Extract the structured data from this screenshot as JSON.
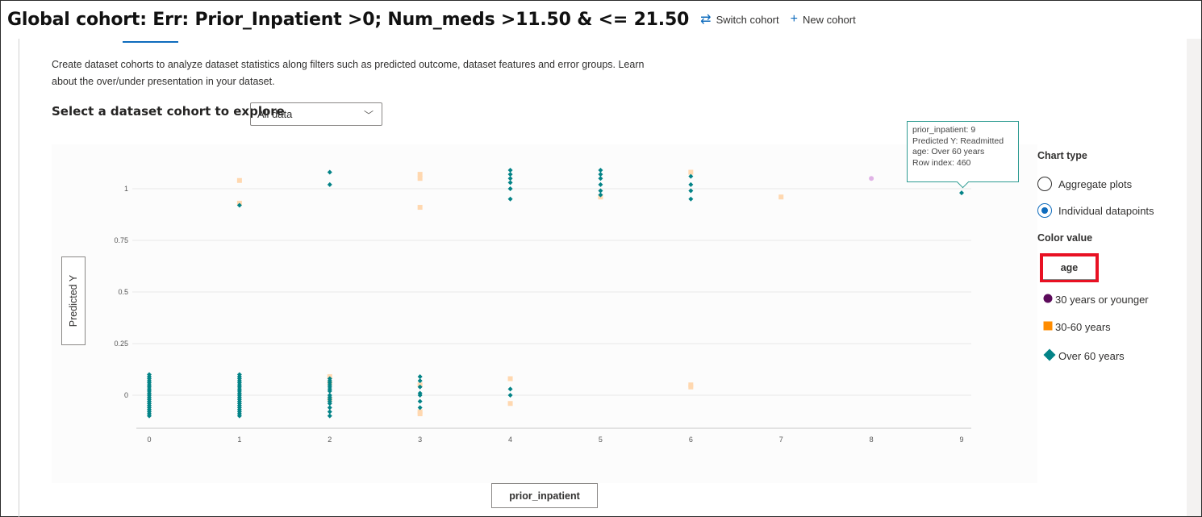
{
  "header": {
    "title": "Global cohort: Err: Prior_Inpatient >0; Num_meds >11.50 & <= 21.50",
    "switch_label": "Switch cohort",
    "new_label": "New cohort"
  },
  "description": "Create dataset cohorts to analyze dataset statistics along filters such as predicted outcome, dataset features and error groups. Learn about the over/under presentation in your dataset.",
  "cohort_select": {
    "label": "Select a dataset cohort to explore",
    "value": "All data"
  },
  "axes": {
    "y_label": "Predicted Y",
    "x_label": "prior_inpatient"
  },
  "tooltip": {
    "line1": "prior_inpatient: 9",
    "line2": "Predicted Y: Readmitted",
    "line3": "age: Over 60 years",
    "line4": "Row index: 460"
  },
  "sidepanel": {
    "chart_type_label": "Chart type",
    "options": [
      "Aggregate plots",
      "Individual datapoints"
    ],
    "selected_option": "Individual datapoints",
    "color_value_label": "Color value",
    "color_value": "age",
    "legend": [
      {
        "label": "30 years or younger",
        "color": "#5c0b5b",
        "shape": "circle"
      },
      {
        "label": "30-60 years",
        "color": "#ff8c00",
        "shape": "square"
      },
      {
        "label": "Over 60 years",
        "color": "#038387",
        "shape": "diamond"
      }
    ]
  },
  "colors": {
    "accent": "#0f6cbd",
    "highlight_border": "#e81123",
    "teal": "#038387",
    "orange_light": "#ffd8b0",
    "purple_light": "#e0b3e6"
  },
  "chart_data": {
    "type": "scatter",
    "x_ticks": [
      "0",
      "1",
      "2",
      "3",
      "4",
      "5",
      "6",
      "7",
      "8",
      "9"
    ],
    "y_ticks": [
      "0",
      "0.25",
      "0.5",
      "0.75",
      "1"
    ],
    "xlim": [
      0,
      9
    ],
    "ylim": [
      -0.15,
      1.15
    ],
    "series": [
      {
        "name": "30 years or younger",
        "shape": "circle",
        "color": "#e0b3e6",
        "points": [
          [
            8,
            1.05
          ]
        ]
      },
      {
        "name": "30-60 years",
        "shape": "square",
        "color": "#ffd8b0",
        "points": [
          [
            1,
            1.04
          ],
          [
            1,
            0.93
          ],
          [
            2,
            0.09
          ],
          [
            2,
            0.06
          ],
          [
            2,
            -0.02
          ],
          [
            3,
            1.07
          ],
          [
            3,
            1.05
          ],
          [
            3,
            0.91
          ],
          [
            3,
            0.05
          ],
          [
            3,
            -0.08
          ],
          [
            3,
            -0.09
          ],
          [
            4,
            0.08
          ],
          [
            4,
            -0.04
          ],
          [
            5,
            0.96
          ],
          [
            6,
            1.08
          ],
          [
            6,
            0.05
          ],
          [
            7,
            0.96
          ],
          [
            6,
            0.04
          ]
        ]
      },
      {
        "name": "Over 60 years",
        "shape": "diamond",
        "color": "#038387",
        "points": [
          [
            0,
            0.1
          ],
          [
            0,
            0.08
          ],
          [
            0,
            0.06
          ],
          [
            0,
            0.04
          ],
          [
            0,
            0.02
          ],
          [
            0,
            0.0
          ],
          [
            0,
            -0.02
          ],
          [
            0,
            -0.04
          ],
          [
            0,
            -0.06
          ],
          [
            0,
            -0.08
          ],
          [
            0,
            -0.1
          ],
          [
            0,
            0.09
          ],
          [
            0,
            0.07
          ],
          [
            0,
            0.05
          ],
          [
            0,
            0.03
          ],
          [
            0,
            0.01
          ],
          [
            0,
            -0.01
          ],
          [
            0,
            -0.03
          ],
          [
            0,
            -0.05
          ],
          [
            0,
            -0.07
          ],
          [
            0,
            -0.09
          ],
          [
            1,
            0.92
          ],
          [
            1,
            0.1
          ],
          [
            1,
            0.08
          ],
          [
            1,
            0.06
          ],
          [
            1,
            0.04
          ],
          [
            1,
            0.02
          ],
          [
            1,
            0.0
          ],
          [
            1,
            -0.02
          ],
          [
            1,
            -0.04
          ],
          [
            1,
            -0.06
          ],
          [
            1,
            -0.08
          ],
          [
            1,
            -0.1
          ],
          [
            1,
            0.09
          ],
          [
            1,
            0.07
          ],
          [
            1,
            0.05
          ],
          [
            1,
            0.03
          ],
          [
            1,
            0.01
          ],
          [
            1,
            -0.01
          ],
          [
            1,
            -0.03
          ],
          [
            1,
            -0.05
          ],
          [
            1,
            -0.07
          ],
          [
            1,
            -0.09
          ],
          [
            2,
            1.08
          ],
          [
            2,
            1.02
          ],
          [
            2,
            0.08
          ],
          [
            2,
            0.06
          ],
          [
            2,
            0.04
          ],
          [
            2,
            0.02
          ],
          [
            2,
            0.0
          ],
          [
            2,
            -0.02
          ],
          [
            2,
            -0.04
          ],
          [
            2,
            -0.06
          ],
          [
            2,
            -0.08
          ],
          [
            2,
            -0.1
          ],
          [
            2,
            0.07
          ],
          [
            2,
            0.05
          ],
          [
            2,
            0.03
          ],
          [
            2,
            -0.01
          ],
          [
            2,
            -0.03
          ],
          [
            3,
            0.09
          ],
          [
            3,
            0.07
          ],
          [
            3,
            0.04
          ],
          [
            3,
            0.01
          ],
          [
            3,
            0.0
          ],
          [
            3,
            -0.03
          ],
          [
            3,
            -0.06
          ],
          [
            4,
            1.09
          ],
          [
            4,
            1.07
          ],
          [
            4,
            1.05
          ],
          [
            4,
            1.03
          ],
          [
            4,
            1.0
          ],
          [
            4,
            0.95
          ],
          [
            4,
            0.03
          ],
          [
            4,
            0.0
          ],
          [
            5,
            1.09
          ],
          [
            5,
            1.07
          ],
          [
            5,
            1.05
          ],
          [
            5,
            1.02
          ],
          [
            5,
            0.99
          ],
          [
            5,
            0.97
          ],
          [
            6,
            1.06
          ],
          [
            6,
            1.02
          ],
          [
            6,
            0.99
          ],
          [
            6,
            0.95
          ],
          [
            9,
            0.98
          ]
        ]
      }
    ]
  }
}
